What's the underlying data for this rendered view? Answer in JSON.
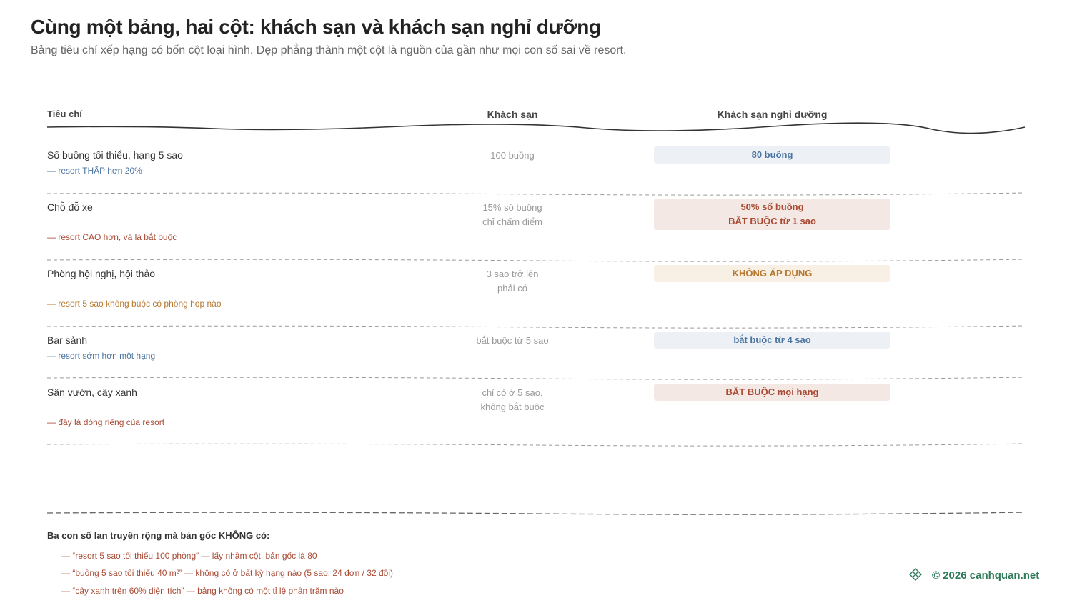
{
  "header": {
    "title": "Cùng một bảng, hai cột: khách sạn và khách sạn nghỉ dưỡng",
    "subtitle": "Bảng tiêu chí xếp hạng có bốn cột loại hình. Dẹp phẳng thành một cột là nguồn của gần như mọi con số sai về resort."
  },
  "table": {
    "headers": [
      "Tiêu chí",
      "Khách sạn",
      "Khách sạn nghỉ dưỡng"
    ],
    "rows": [
      {
        "criterion": "Số buồng tối thiểu, hạng 5 sao",
        "note": "— resort THẤP hơn 20%",
        "tone": "blue",
        "hotel": [
          "100 buồng"
        ],
        "resort": [
          "80 buồng"
        ]
      },
      {
        "criterion": "Chỗ đỗ xe",
        "note": "— resort CAO hơn, và là bắt buộc",
        "tone": "red",
        "hotel": [
          "15% số buồng",
          "chỉ chấm điểm"
        ],
        "resort": [
          "50% số buồng",
          "BẮT BUỘC từ 1 sao"
        ]
      },
      {
        "criterion": "Phòng hội nghị, hội thảo",
        "note": "— resort 5 sao không buộc có phòng họp nào",
        "tone": "orange",
        "hotel": [
          "3 sao trở lên",
          "phải có"
        ],
        "resort": [
          "KHÔNG ÁP DỤNG"
        ]
      },
      {
        "criterion": "Bar sảnh",
        "note": "— resort sớm hơn một hạng",
        "tone": "blue",
        "hotel": [
          "bắt buộc từ 5 sao"
        ],
        "resort": [
          "bắt buộc từ 4 sao"
        ]
      },
      {
        "criterion": "Sân vườn, cây xanh",
        "note": "— đây là dòng riêng của resort",
        "tone": "red",
        "hotel": [
          "chỉ có ở 5 sao,",
          "không bắt buộc"
        ],
        "resort": [
          "BẮT BUỘC mọi hạng"
        ]
      }
    ]
  },
  "footer": {
    "title": "Ba con số lan truyền rộng mà bản gốc KHÔNG có:",
    "items": [
      "— “resort 5 sao tối thiểu 100 phòng” — lấy nhầm cột, bản gốc là 80",
      "— “buồng 5 sao tối thiểu 40 m²” — không có ở bất kỳ hạng nào (5 sao: 24 đơn / 32 đôi)",
      "— “cây xanh trên 60% diện tích” — bảng không có một tỉ lệ phần trăm nào"
    ]
  },
  "brand": "© 2026 canhquan.net"
}
